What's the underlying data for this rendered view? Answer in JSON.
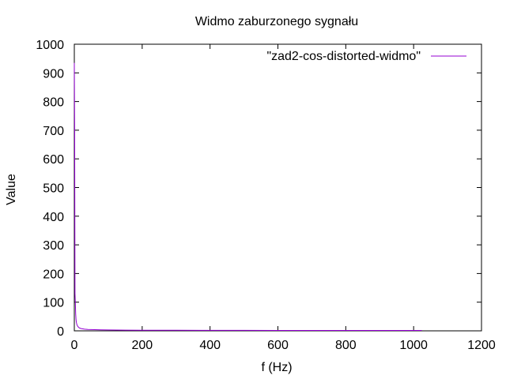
{
  "chart_data": {
    "type": "line",
    "title": "Widmo zaburzonego sygnału",
    "xlabel": "f (Hz)",
    "ylabel": "Value",
    "xlim": [
      0,
      1200
    ],
    "ylim": [
      0,
      1000
    ],
    "xticks": [
      "0",
      "200",
      "400",
      "600",
      "800",
      "1000",
      "1200"
    ],
    "yticks": [
      "0",
      "100",
      "200",
      "300",
      "400",
      "500",
      "600",
      "700",
      "800",
      "900",
      "1000"
    ],
    "grid": false,
    "legend_position": "top-right",
    "colors": {
      "series": "#9400d3",
      "axis": "#000000"
    },
    "series": [
      {
        "name": "\"zad2-cos-distorted-widmo\"",
        "x": [
          0,
          1,
          2,
          3,
          4,
          5,
          6,
          7,
          8,
          10,
          12,
          15,
          20,
          25,
          30,
          40,
          50,
          60,
          80,
          100,
          150,
          200,
          300,
          400,
          500,
          600,
          700,
          800,
          900,
          1000,
          1024
        ],
        "y": [
          935,
          700,
          130,
          100,
          60,
          40,
          30,
          25,
          20,
          16,
          13,
          10,
          8,
          7,
          6,
          5,
          4.5,
          4,
          3.5,
          3,
          2.5,
          2,
          2,
          1.8,
          1.6,
          1.5,
          1.5,
          1.4,
          1.3,
          1.2,
          1.2
        ]
      }
    ]
  }
}
